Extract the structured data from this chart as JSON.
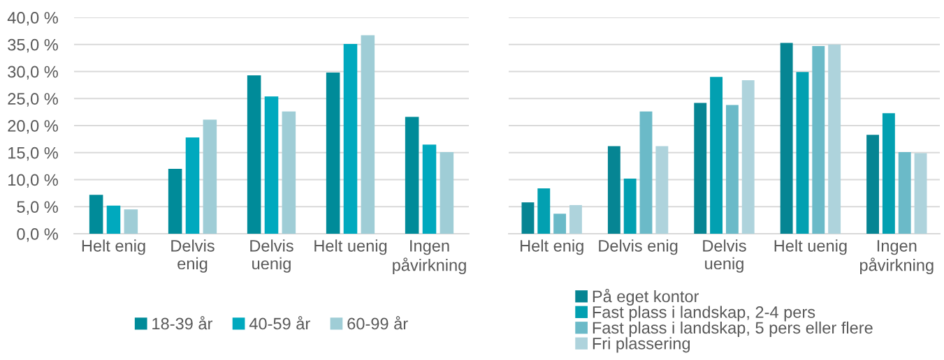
{
  "chart_data": [
    {
      "type": "bar",
      "categories": [
        "Helt enig",
        "Delvis enig",
        "Delvis uenig",
        "Helt uenig",
        "Ingen påvirkning"
      ],
      "series": [
        {
          "name": "18-39 år",
          "color": "#008b99",
          "values": [
            7.2,
            12.0,
            29.3,
            29.8,
            21.6
          ]
        },
        {
          "name": "40-59 år",
          "color": "#00a9be",
          "values": [
            5.2,
            17.8,
            25.4,
            35.1,
            16.5
          ]
        },
        {
          "name": "60-99 år",
          "color": "#9fcdd6",
          "values": [
            4.5,
            21.1,
            22.6,
            36.7,
            15.1
          ]
        }
      ],
      "ylim": [
        0,
        40
      ],
      "yticks": [
        {
          "value": 0,
          "label": "0,0 %"
        },
        {
          "value": 5,
          "label": "5,0 %"
        },
        {
          "value": 10,
          "label": "10,0 %"
        },
        {
          "value": 15,
          "label": "15,0 %"
        },
        {
          "value": 20,
          "label": "20,0 %"
        },
        {
          "value": 25,
          "label": "25,0 %"
        },
        {
          "value": 30,
          "label": "30,0 %"
        },
        {
          "value": 35,
          "label": "35,0 %"
        },
        {
          "value": 40,
          "label": "40,0 %"
        }
      ],
      "grid": "y",
      "legend": "bottom"
    },
    {
      "type": "bar",
      "categories": [
        "Helt enig",
        "Delvis enig",
        "Delvis uenig",
        "Helt uenig",
        "Ingen påvirkning"
      ],
      "series": [
        {
          "name": "På eget kontor",
          "color": "#068593",
          "values": [
            5.8,
            16.2,
            24.2,
            35.3,
            18.3
          ]
        },
        {
          "name": "Fast plass i landskap, 2-4 pers",
          "color": "#02a0b1",
          "values": [
            8.4,
            10.2,
            29.0,
            29.9,
            22.3
          ]
        },
        {
          "name": "Fast plass i landskap, 5 pers eller flere",
          "color": "#6bbac8",
          "values": [
            3.7,
            22.6,
            23.8,
            34.7,
            15.1
          ]
        },
        {
          "name": "Fri plassering",
          "color": "#aed3dc",
          "values": [
            5.3,
            16.2,
            28.4,
            35.0,
            14.9
          ]
        }
      ],
      "ylim": [
        0,
        40
      ],
      "yticks": [
        {
          "value": 0,
          "label": null
        },
        {
          "value": 5,
          "label": null
        },
        {
          "value": 10,
          "label": null
        },
        {
          "value": 15,
          "label": null
        },
        {
          "value": 20,
          "label": null
        },
        {
          "value": 25,
          "label": null
        },
        {
          "value": 30,
          "label": null
        },
        {
          "value": 35,
          "label": null
        },
        {
          "value": 40,
          "label": null
        }
      ],
      "grid": "y",
      "legend": "bottom",
      "tick_labels": "x"
    }
  ]
}
